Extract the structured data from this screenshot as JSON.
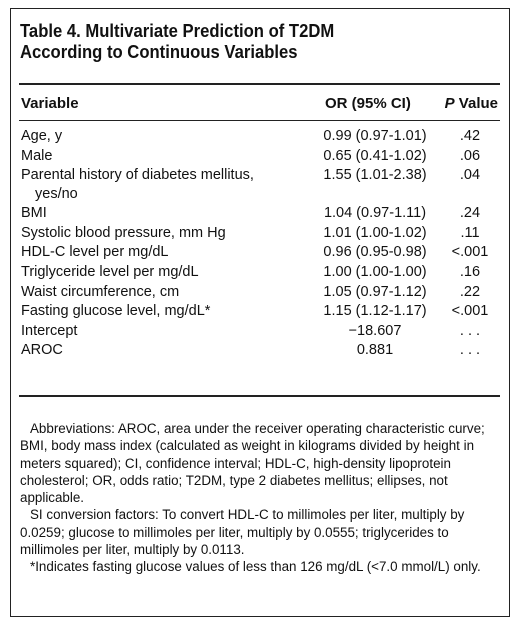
{
  "table": {
    "title_line1": "Table 4. Multivariate Prediction of T2DM",
    "title_line2": "According to Continuous Variables",
    "headers": {
      "variable": "Variable",
      "or": "OR (95% CI)",
      "p_italic": "P",
      "p_rest": " Value"
    },
    "rows": [
      {
        "variable": "Age, y",
        "or": "0.99 (0.97-1.01)",
        "p": ".42"
      },
      {
        "variable": "Male",
        "or": "0.65 (0.41-1.02)",
        "p": ".06"
      },
      {
        "variable": "Parental history of diabetes mellitus,",
        "variable_cont": "yes/no",
        "or": "1.55 (1.01-2.38)",
        "p": ".04"
      },
      {
        "variable": "BMI",
        "or": "1.04 (0.97-1.11)",
        "p": ".24"
      },
      {
        "variable": "Systolic blood pressure, mm Hg",
        "or": "1.01 (1.00-1.02)",
        "p": ".11"
      },
      {
        "variable": "HDL-C level per mg/dL",
        "or": "0.96 (0.95-0.98)",
        "p": "<.001"
      },
      {
        "variable": "Triglyceride level per mg/dL",
        "or": "1.00 (1.00-1.00)",
        "p": ".16"
      },
      {
        "variable": "Waist circumference, cm",
        "or": "1.05 (0.97-1.12)",
        "p": ".22"
      },
      {
        "variable": "Fasting glucose level, mg/dL*",
        "or": "1.15 (1.12-1.17)",
        "p": "<.001"
      },
      {
        "variable": "Intercept",
        "or": "−18.607",
        "p": ". . ."
      },
      {
        "variable": "AROC",
        "or": "0.881",
        "p": ". . ."
      }
    ]
  },
  "notes": {
    "abbreviations": "Abbreviations: AROC, area under the receiver operating characteristic curve; BMI, body mass index (calculated as weight in kilograms divided by height in meters squared); CI, confidence interval; HDL-C, high-density lipoprotein cholesterol; OR, odds ratio; T2DM, type 2 diabetes mellitus; ellipses, not applicable.",
    "si_conversion": "SI conversion factors: To convert HDL-C to millimoles per liter, multiply by 0.0259; glucose to millimoles per liter, multiply by 0.0555; triglycerides to millimoles per liter, multiply by 0.0113.",
    "footnote": "*Indicates fasting glucose values of less than 126 mg/dL (<7.0 mmol/L) only."
  }
}
